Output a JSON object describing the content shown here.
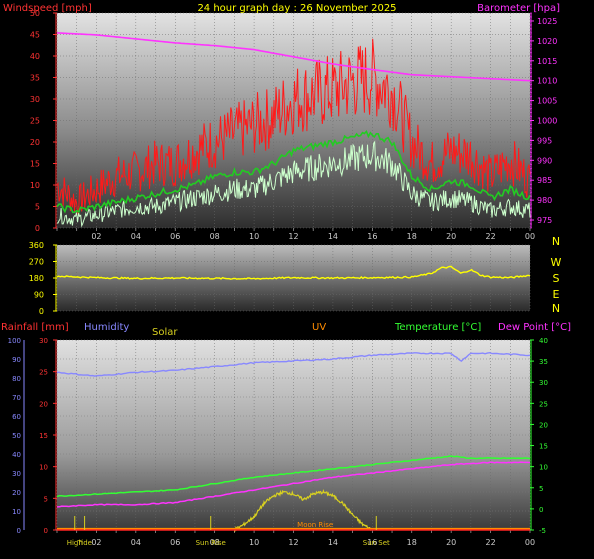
{
  "header": {
    "left_label": "Windspeed [mph]",
    "title": "24 hour graph day : 26 November 2025",
    "right_label": "Barometer [hpa]"
  },
  "colors": {
    "wind_gust": "#ff1a1a",
    "wind_avg": "#22cc22",
    "wind_speed": "#ccffcc",
    "barometer": "#ff33ff",
    "direction": "#ffff00",
    "humidity": "#8888ff",
    "temperature": "#33ff33",
    "dewpoint": "#ff33ff",
    "solar": "#d8d020",
    "uv": "#ff8c00",
    "rain": "#ff2222",
    "label_red": "#ff3333",
    "label_yellow": "#ffff00"
  },
  "direction_panel": {
    "compass_labels": [
      "N",
      "W",
      "S",
      "E",
      "N"
    ]
  },
  "lower_header": {
    "rainfall": "Rainfall [mm]",
    "humidity": "Humidity",
    "solar": "Solar",
    "uv": "UV",
    "temperature": "Temperature [°C]",
    "dewpoint": "Dew Point [°C]"
  },
  "chart_data": [
    {
      "type": "line",
      "name": "wind_barometer",
      "x_tick_labels": [
        "02",
        "04",
        "06",
        "08",
        "10",
        "12",
        "14",
        "16",
        "18",
        "20",
        "22",
        "00"
      ],
      "x_range_hours": [
        0,
        24
      ],
      "ylabel": "Windspeed [mph]",
      "y_ticks": [
        0,
        5,
        10,
        15,
        20,
        25,
        30,
        35,
        40,
        45,
        50
      ],
      "ylim": [
        0,
        50
      ],
      "y2label": "Barometer [hpa]",
      "y2_ticks": [
        975,
        980,
        985,
        990,
        995,
        1000,
        1005,
        1010,
        1015,
        1020,
        1025
      ],
      "y2lim": [
        973,
        1027
      ],
      "grid": true,
      "series": [
        {
          "key": "wind_gust",
          "axis": "left",
          "x": [
            0,
            1,
            2,
            3,
            4,
            5,
            6,
            7,
            8,
            9,
            10,
            11,
            12,
            13,
            14,
            15,
            16,
            17,
            18,
            19,
            20,
            21,
            22,
            23,
            24
          ],
          "values": [
            10,
            6,
            9,
            12,
            13,
            15,
            15,
            18,
            20,
            22,
            24,
            26,
            30,
            31,
            32,
            34,
            35,
            32,
            20,
            15,
            18,
            17,
            12,
            16,
            11
          ]
        },
        {
          "key": "wind_avg",
          "axis": "left",
          "x": [
            0,
            1,
            2,
            3,
            4,
            5,
            6,
            7,
            8,
            9,
            10,
            11,
            12,
            13,
            14,
            15,
            16,
            17,
            18,
            19,
            20,
            21,
            22,
            23,
            24
          ],
          "values": [
            5,
            4,
            5,
            6,
            7,
            8,
            9,
            10,
            12,
            13,
            13,
            15,
            18,
            19,
            20,
            21,
            22,
            20,
            12,
            9,
            11,
            10,
            7,
            9,
            7
          ]
        },
        {
          "key": "wind_speed",
          "axis": "left",
          "x": [
            0,
            1,
            2,
            3,
            4,
            5,
            6,
            7,
            8,
            9,
            10,
            11,
            12,
            13,
            14,
            15,
            16,
            17,
            18,
            19,
            20,
            21,
            22,
            23,
            24
          ],
          "values": [
            3,
            2,
            3,
            4,
            5,
            5,
            6,
            7,
            8,
            9,
            9,
            11,
            13,
            14,
            15,
            16,
            17,
            15,
            8,
            6,
            7,
            6,
            4,
            5,
            4
          ]
        },
        {
          "key": "barometer",
          "axis": "right",
          "x": [
            0,
            2,
            4,
            6,
            8,
            10,
            12,
            14,
            16,
            18,
            20,
            22,
            24
          ],
          "values": [
            1022,
            1021.5,
            1020.5,
            1019.5,
            1018.8,
            1017.8,
            1016,
            1014.2,
            1012.8,
            1011.5,
            1011,
            1010.5,
            1010
          ]
        }
      ]
    },
    {
      "type": "line",
      "name": "wind_direction",
      "x_range_hours": [
        0,
        24
      ],
      "ylabel": "",
      "y_ticks": [
        0,
        90,
        180,
        270,
        360
      ],
      "ylim": [
        0,
        360
      ],
      "grid": true,
      "series": [
        {
          "key": "direction",
          "x": [
            0,
            2,
            4,
            6,
            8,
            10,
            12,
            14,
            16,
            18,
            19,
            19.5,
            20,
            20.5,
            21,
            21.5,
            22,
            23,
            24
          ],
          "values": [
            190,
            182,
            178,
            180,
            178,
            176,
            182,
            180,
            182,
            185,
            205,
            235,
            240,
            205,
            225,
            195,
            185,
            182,
            195
          ]
        }
      ]
    },
    {
      "type": "line",
      "name": "rain_humidity_solar_uv_temperature_dewpoint",
      "x_tick_labels": [
        "02",
        "04",
        "06",
        "08",
        "10",
        "12",
        "14",
        "16",
        "18",
        "20",
        "22",
        "00"
      ],
      "x_range_hours": [
        0,
        24
      ],
      "y_ticks_humidity": [
        0,
        10,
        20,
        30,
        40,
        50,
        60,
        70,
        80,
        90,
        100
      ],
      "ylim_humidity": [
        0,
        100
      ],
      "y_ticks_rain": [
        0,
        5,
        10,
        15,
        20,
        25,
        30
      ],
      "ylim_rain": [
        0,
        30
      ],
      "y_ticks_solar": [
        0,
        125,
        250,
        375,
        500
      ],
      "ylim_solar": [
        0,
        500
      ],
      "y_ticks_temperature": [
        -5,
        0,
        5,
        10,
        15,
        20,
        25,
        30,
        35,
        40
      ],
      "ylim_temperature": [
        -5,
        40
      ],
      "grid": true,
      "series": [
        {
          "key": "humidity",
          "axis": "humidity",
          "x": [
            0,
            1,
            2,
            4,
            6,
            8,
            10,
            12,
            14,
            16,
            18,
            20,
            20.5,
            21,
            22,
            24
          ],
          "values": [
            83,
            82,
            81,
            83,
            84,
            86,
            88,
            89,
            90,
            92,
            93,
            93,
            89,
            93,
            93,
            92
          ]
        },
        {
          "key": "temperature",
          "axis": "temperature",
          "x": [
            0,
            2,
            4,
            6,
            8,
            10,
            12,
            14,
            16,
            18,
            20,
            21,
            22,
            24
          ],
          "values": [
            3,
            3.5,
            4,
            4.5,
            6,
            7.5,
            8.5,
            9.5,
            10.5,
            11.5,
            12.5,
            12,
            12,
            12
          ]
        },
        {
          "key": "dewpoint",
          "axis": "temperature",
          "x": [
            0,
            2,
            4,
            6,
            8,
            10,
            12,
            14,
            16,
            18,
            20,
            22,
            24
          ],
          "values": [
            0.5,
            1,
            1,
            1.5,
            3,
            4.5,
            6,
            7.5,
            8.5,
            9.5,
            10.5,
            11,
            11
          ]
        },
        {
          "key": "solar",
          "axis": "solar",
          "x": [
            9,
            9.5,
            10,
            10.5,
            11,
            11.5,
            12,
            12.5,
            13,
            13.5,
            14,
            14.5,
            15,
            15.5,
            16
          ],
          "values": [
            0,
            15,
            35,
            70,
            90,
            100,
            95,
            80,
            95,
            100,
            90,
            70,
            40,
            15,
            0
          ]
        },
        {
          "key": "uv",
          "axis": "temperature",
          "x": [
            0,
            24
          ],
          "values": [
            -4.7,
            -4.7
          ]
        },
        {
          "key": "rain",
          "axis": "rain",
          "x": [
            0,
            24
          ],
          "values": [
            0,
            0
          ]
        }
      ],
      "annotations": [
        {
          "label": "High",
          "hour": 0.9
        },
        {
          "label": "Tide",
          "hour": 1.4
        },
        {
          "label": "Sun Rise",
          "hour": 7.8
        },
        {
          "label": "Moon Rise",
          "hour": 13.1
        },
        {
          "label": "Sun Set",
          "hour": 16.2
        }
      ]
    }
  ]
}
